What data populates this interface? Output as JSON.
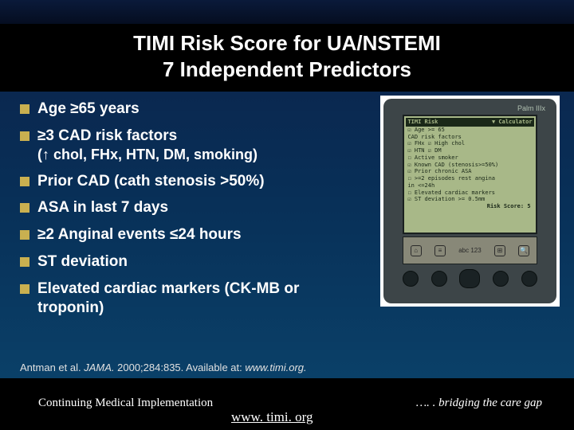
{
  "title": {
    "line1": "TIMI Risk Score for UA/NSTEMI",
    "line2": "7 Independent Predictors"
  },
  "bullets": [
    {
      "text": "Age ≥65 years"
    },
    {
      "text": "≥3 CAD risk factors",
      "sub": "(↑ chol, FHx, HTN, DM, smoking)"
    },
    {
      "text": "Prior CAD (cath stenosis >50%)"
    },
    {
      "text": "ASA in last 7 days"
    },
    {
      "text": "≥2 Anginal events ≤24 hours"
    },
    {
      "text": "ST deviation"
    },
    {
      "text": "Elevated cardiac markers (CK-MB or troponin)"
    }
  ],
  "pda": {
    "brand": "Palm IIIx",
    "screen_title_left": "TIMI Risk",
    "screen_title_right": "▼ Calculator",
    "lines": [
      "☑ Age >= 65",
      "CAD risk factors",
      "  ☑ FHx   ☑ High chol",
      "  ☑ HTN   ☑ DM",
      "  ☐ Active smoker",
      "☑ Known CAD (stenosis>=50%)",
      "☑ Prior chronic ASA",
      "☐ >=2 episodes rest angina",
      "   in <=24h",
      "☐ Elevated cardiac markers",
      "☑ ST deviation >= 0.5mm"
    ],
    "score": "Risk Score: 5"
  },
  "citation": {
    "prefix": "Antman et al. ",
    "journal": "JAMA.",
    "rest": " 2000;284:835. Available at: ",
    "url": "www.timi.org."
  },
  "footer": {
    "left": "Continuing Medical Implementation",
    "center": "www. timi. org",
    "right": "…. . bridging the care gap"
  },
  "colors": {
    "bullet_square": "#c9b050",
    "bg_black": "#000000",
    "gradient_top": "#0a2850",
    "gradient_bottom": "#0a4068",
    "pda_body": "#3d4548",
    "pda_screen": "#a8b888"
  }
}
